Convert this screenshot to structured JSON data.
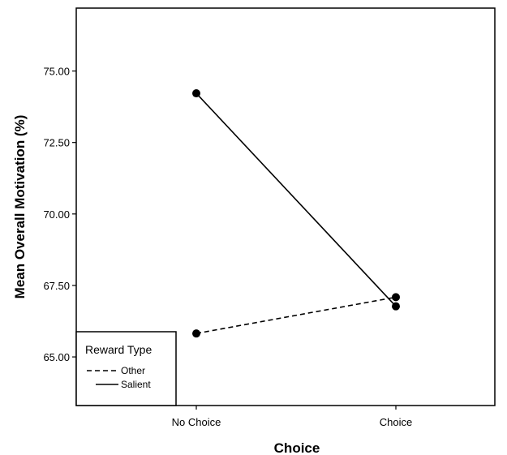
{
  "chart_data": {
    "type": "line",
    "xlabel": "Choice",
    "ylabel": "Mean Overall Motivation (%)",
    "categories": [
      "No Choice",
      "Choice"
    ],
    "ylim": [
      63.3,
      77.2
    ],
    "yticks": [
      "65.00",
      "67.50",
      "70.00",
      "72.50",
      "75.00"
    ],
    "grid": false,
    "legend": {
      "title": "Reward Type",
      "placement": "bottom-left"
    },
    "series": [
      {
        "name": "Other",
        "values": [
          65.82,
          67.09
        ],
        "line_style": "dashed",
        "color": "#000000"
      },
      {
        "name": "Salient",
        "values": [
          74.22,
          66.77
        ],
        "line_style": "solid",
        "color": "#000000"
      }
    ]
  }
}
